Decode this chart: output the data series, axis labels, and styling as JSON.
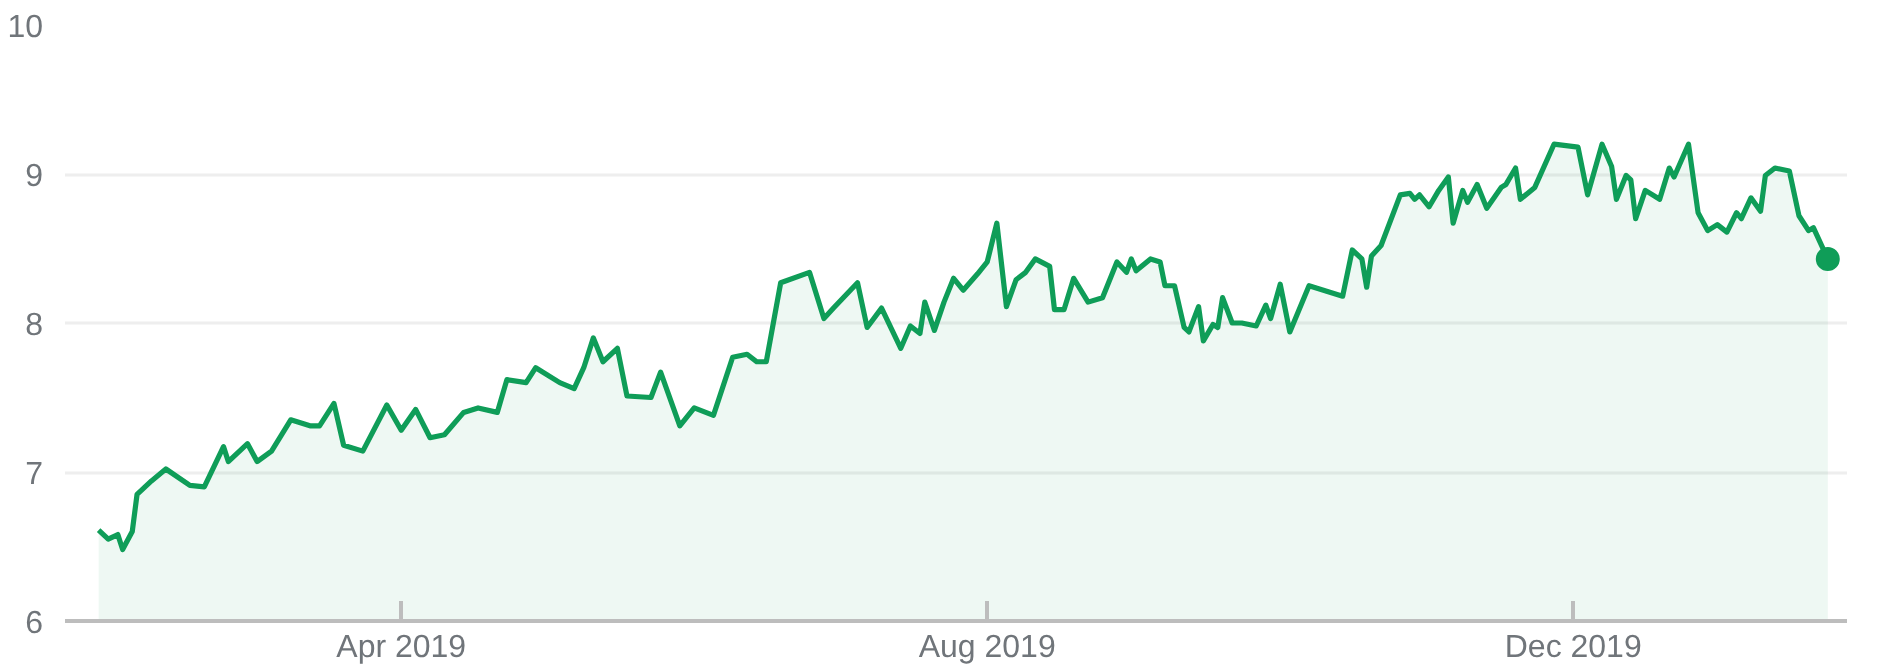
{
  "chart_data": {
    "type": "area",
    "x": [
      "2019-01-28",
      "2019-01-30",
      "2019-02-01",
      "2019-02-02",
      "2019-02-04",
      "2019-02-05",
      "2019-02-08",
      "2019-02-11",
      "2019-02-16",
      "2019-02-19",
      "2019-02-23",
      "2019-02-24",
      "2019-02-28",
      "2019-03-02",
      "2019-03-05",
      "2019-03-09",
      "2019-03-13",
      "2019-03-15",
      "2019-03-18",
      "2019-03-20",
      "2019-03-24",
      "2019-03-29",
      "2019-04-01",
      "2019-04-04",
      "2019-04-07",
      "2019-04-10",
      "2019-04-14",
      "2019-04-17",
      "2019-04-21",
      "2019-04-23",
      "2019-04-27",
      "2019-04-29",
      "2019-05-04",
      "2019-05-07",
      "2019-05-09",
      "2019-05-11",
      "2019-05-13",
      "2019-05-16",
      "2019-05-18",
      "2019-05-23",
      "2019-05-25",
      "2019-05-29",
      "2019-06-01",
      "2019-06-05",
      "2019-06-09",
      "2019-06-12",
      "2019-06-14",
      "2019-06-16",
      "2019-06-19",
      "2019-06-25",
      "2019-06-28",
      "2019-06-30",
      "2019-07-05",
      "2019-07-07",
      "2019-07-10",
      "2019-07-14",
      "2019-07-16",
      "2019-07-18",
      "2019-07-19",
      "2019-07-21",
      "2019-07-23",
      "2019-07-25",
      "2019-07-27",
      "2019-07-30",
      "2019-08-01",
      "2019-08-03",
      "2019-08-05",
      "2019-08-07",
      "2019-08-09",
      "2019-08-11",
      "2019-08-14",
      "2019-08-15",
      "2019-08-17",
      "2019-08-19",
      "2019-08-22",
      "2019-08-25",
      "2019-08-28",
      "2019-08-30",
      "2019-08-31",
      "2019-09-01",
      "2019-09-04",
      "2019-09-06",
      "2019-09-07",
      "2019-09-09",
      "2019-09-11",
      "2019-09-12",
      "2019-09-14",
      "2019-09-15",
      "2019-09-17",
      "2019-09-18",
      "2019-09-19",
      "2019-09-21",
      "2019-09-23",
      "2019-09-26",
      "2019-09-28",
      "2019-09-29",
      "2019-10-01",
      "2019-10-03",
      "2019-10-07",
      "2019-10-14",
      "2019-10-16",
      "2019-10-18",
      "2019-10-19",
      "2019-10-20",
      "2019-10-22",
      "2019-10-26",
      "2019-10-28",
      "2019-10-29",
      "2019-10-30",
      "2019-11-01",
      "2019-11-03",
      "2019-11-05",
      "2019-11-06",
      "2019-11-08",
      "2019-11-09",
      "2019-11-11",
      "2019-11-13",
      "2019-11-16",
      "2019-11-17",
      "2019-11-19",
      "2019-11-20",
      "2019-11-23",
      "2019-11-27",
      "2019-12-02",
      "2019-12-04",
      "2019-12-07",
      "2019-12-09",
      "2019-12-10",
      "2019-12-12",
      "2019-12-13",
      "2019-12-14",
      "2019-12-16",
      "2019-12-19",
      "2019-12-21",
      "2019-12-22",
      "2019-12-25",
      "2019-12-27",
      "2019-12-29",
      "2019-12-31",
      "2020-01-02",
      "2020-01-04",
      "2020-01-05",
      "2020-01-07",
      "2020-01-09",
      "2020-01-10",
      "2020-01-12",
      "2020-01-15",
      "2020-01-17",
      "2020-01-19",
      "2020-01-20",
      "2020-01-23"
    ],
    "series": [
      {
        "color": "#0f9d58",
        "values": [
          6.61,
          6.55,
          6.58,
          6.48,
          6.6,
          6.85,
          6.94,
          7.02,
          6.91,
          6.9,
          7.17,
          7.07,
          7.19,
          7.07,
          7.14,
          7.35,
          7.31,
          7.31,
          7.46,
          7.18,
          7.14,
          7.45,
          7.28,
          7.42,
          7.23,
          7.25,
          7.4,
          7.43,
          7.4,
          7.62,
          7.6,
          7.7,
          7.6,
          7.56,
          7.7,
          7.9,
          7.74,
          7.83,
          7.51,
          7.5,
          7.67,
          7.31,
          7.43,
          7.38,
          7.77,
          7.79,
          7.74,
          7.74,
          8.27,
          8.34,
          8.03,
          8.1,
          8.27,
          7.97,
          8.1,
          7.83,
          7.98,
          7.93,
          8.14,
          7.95,
          8.14,
          8.3,
          8.22,
          8.33,
          8.41,
          8.67,
          8.11,
          8.29,
          8.34,
          8.43,
          8.38,
          8.09,
          8.09,
          8.3,
          8.14,
          8.17,
          8.41,
          8.34,
          8.43,
          8.35,
          8.43,
          8.41,
          8.25,
          8.25,
          7.97,
          7.94,
          8.11,
          7.88,
          7.99,
          7.97,
          8.17,
          8.0,
          8.0,
          7.98,
          8.12,
          8.03,
          8.26,
          7.94,
          8.25,
          8.18,
          8.49,
          8.43,
          8.24,
          8.45,
          8.52,
          8.86,
          8.87,
          8.83,
          8.86,
          8.78,
          8.89,
          8.98,
          8.67,
          8.89,
          8.81,
          8.93,
          8.77,
          8.91,
          8.93,
          9.04,
          8.83,
          8.91,
          9.2,
          9.18,
          8.86,
          9.2,
          9.05,
          8.83,
          8.99,
          8.96,
          8.7,
          8.89,
          8.83,
          9.04,
          8.98,
          9.2,
          8.74,
          8.62,
          8.66,
          8.61,
          8.74,
          8.7,
          8.84,
          8.75,
          8.99,
          9.04,
          9.02,
          8.72,
          8.62,
          8.64,
          8.43
        ]
      },
      {
        "type": "scatter",
        "color": "#0f9d58",
        "x": [
          "2020-01-23"
        ],
        "values": [
          8.43
        ]
      }
    ],
    "xlim": [
      "2019-01-21",
      "2020-01-27"
    ],
    "xticks": [
      {
        "value": "2019-04-01",
        "label": "Apr 2019"
      },
      {
        "value": "2019-08-01",
        "label": "Aug 2019"
      },
      {
        "value": "2019-12-01",
        "label": "Dec 2019"
      }
    ],
    "ylim": [
      6,
      10
    ],
    "yticks": [
      6,
      7,
      8,
      9,
      10
    ],
    "grid": "y",
    "line_style": "solid"
  }
}
